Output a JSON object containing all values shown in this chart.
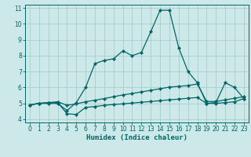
{
  "xlabel": "Humidex (Indice chaleur)",
  "bg_color": "#cce8e8",
  "grid_color": "#aacccc",
  "line_color": "#006666",
  "xlim": [
    -0.5,
    23.5
  ],
  "ylim": [
    3.8,
    11.2
  ],
  "xticks": [
    0,
    1,
    2,
    3,
    4,
    5,
    6,
    7,
    8,
    9,
    10,
    11,
    12,
    13,
    14,
    15,
    16,
    17,
    18,
    19,
    20,
    21,
    22,
    23
  ],
  "yticks": [
    4,
    5,
    6,
    7,
    8,
    9,
    10,
    11
  ],
  "series1_x": [
    0,
    1,
    2,
    3,
    4,
    5,
    6,
    7,
    8,
    9,
    10,
    11,
    12,
    13,
    14,
    15,
    16,
    17,
    18,
    19,
    20,
    21,
    22,
    23
  ],
  "series1_y": [
    4.9,
    5.0,
    5.0,
    5.0,
    4.55,
    5.05,
    6.0,
    7.5,
    7.7,
    7.8,
    8.3,
    8.0,
    8.2,
    9.5,
    10.85,
    10.85,
    8.5,
    7.0,
    6.3,
    5.0,
    5.05,
    6.3,
    6.0,
    5.3
  ],
  "series2_x": [
    0,
    1,
    2,
    3,
    4,
    5,
    6,
    7,
    8,
    9,
    10,
    11,
    12,
    13,
    14,
    15,
    16,
    17,
    18,
    19,
    20,
    21,
    22,
    23
  ],
  "series2_y": [
    4.9,
    5.0,
    5.05,
    5.05,
    4.35,
    4.3,
    4.75,
    4.8,
    4.88,
    4.93,
    4.97,
    5.02,
    5.07,
    5.12,
    5.17,
    5.22,
    5.27,
    5.32,
    5.37,
    5.0,
    5.0,
    5.05,
    5.1,
    5.3
  ],
  "series3_x": [
    0,
    1,
    2,
    3,
    4,
    5,
    6,
    7,
    8,
    9,
    10,
    11,
    12,
    13,
    14,
    15,
    16,
    17,
    18,
    19,
    20,
    21,
    22,
    23
  ],
  "series3_y": [
    4.9,
    5.0,
    5.05,
    5.1,
    4.88,
    4.97,
    5.1,
    5.2,
    5.3,
    5.42,
    5.53,
    5.62,
    5.72,
    5.82,
    5.92,
    6.02,
    6.07,
    6.12,
    6.22,
    5.12,
    5.12,
    5.22,
    5.32,
    5.42
  ]
}
